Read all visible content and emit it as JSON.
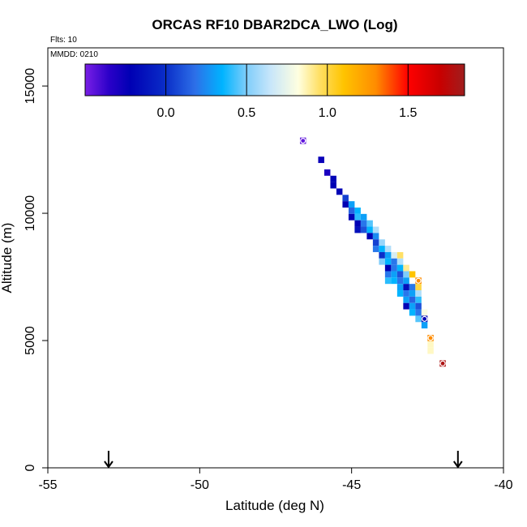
{
  "chart_data": {
    "type": "heatmap",
    "title": "ORCAS RF10 DBAR2DCA_LWO (Log)",
    "flights_label": "Flts: 10",
    "date_label": "MMDD: 0210",
    "xlabel": "Latitude (deg N)",
    "ylabel": "Altitude (m)",
    "xlim": [
      -55,
      -40
    ],
    "ylim": [
      0,
      16500
    ],
    "x_ticks": [
      -55,
      -50,
      -45,
      -40
    ],
    "x_tick_labels": [
      "-55",
      "-50",
      "-45",
      "-40"
    ],
    "y_ticks": [
      0,
      5000,
      10000,
      15000
    ],
    "y_tick_labels": [
      "0",
      "5000",
      "10000",
      "15000"
    ],
    "colorbar": {
      "range": [
        -0.5,
        1.85
      ],
      "ticks": [
        0.0,
        0.5,
        1.0,
        1.5
      ],
      "tick_labels": [
        "0.0",
        "0.5",
        "1.0",
        "1.5"
      ],
      "stops": [
        {
          "v": -0.5,
          "c": "#7a1fe6"
        },
        {
          "v": -0.35,
          "c": "#2a00c8"
        },
        {
          "v": -0.22,
          "c": "#0000b4"
        },
        {
          "v": 0.0,
          "c": "#0a2ec8"
        },
        {
          "v": 0.18,
          "c": "#2d6fe8"
        },
        {
          "v": 0.35,
          "c": "#00b4ff"
        },
        {
          "v": 0.5,
          "c": "#7fcdfa"
        },
        {
          "v": 0.65,
          "c": "#c8e6fa"
        },
        {
          "v": 0.82,
          "c": "#ffffe0"
        },
        {
          "v": 0.95,
          "c": "#ffe066"
        },
        {
          "v": 1.1,
          "c": "#ffc400"
        },
        {
          "v": 1.3,
          "c": "#ff8c00"
        },
        {
          "v": 1.5,
          "c": "#ff0000"
        },
        {
          "v": 1.7,
          "c": "#c80000"
        },
        {
          "v": 1.85,
          "c": "#a01e1e"
        }
      ]
    },
    "arrows_latitude": [
      -53,
      -41.5
    ],
    "cells": [
      {
        "lat": -46.6,
        "alt": 12850,
        "value": -0.45
      },
      {
        "lat": -46.0,
        "alt": 12100,
        "value": -0.25
      },
      {
        "lat": -45.8,
        "alt": 11600,
        "value": -0.3
      },
      {
        "lat": -45.6,
        "alt": 11350,
        "value": -0.2
      },
      {
        "lat": -45.6,
        "alt": 11100,
        "value": -0.22
      },
      {
        "lat": -45.4,
        "alt": 10850,
        "value": -0.2
      },
      {
        "lat": -45.2,
        "alt": 10600,
        "value": 0.05
      },
      {
        "lat": -45.2,
        "alt": 10350,
        "value": -0.22
      },
      {
        "lat": -45.0,
        "alt": 10350,
        "value": 0.3
      },
      {
        "lat": -45.0,
        "alt": 10100,
        "value": 0.15
      },
      {
        "lat": -44.8,
        "alt": 10100,
        "value": 0.35
      },
      {
        "lat": -45.0,
        "alt": 9850,
        "value": -0.2
      },
      {
        "lat": -44.8,
        "alt": 9850,
        "value": 0.4
      },
      {
        "lat": -44.6,
        "alt": 9850,
        "value": 0.3
      },
      {
        "lat": -44.8,
        "alt": 9600,
        "value": -0.22
      },
      {
        "lat": -44.6,
        "alt": 9600,
        "value": 0.2
      },
      {
        "lat": -44.4,
        "alt": 9600,
        "value": 0.45
      },
      {
        "lat": -44.8,
        "alt": 9350,
        "value": -0.15
      },
      {
        "lat": -44.6,
        "alt": 9350,
        "value": 0.1
      },
      {
        "lat": -44.4,
        "alt": 9350,
        "value": 0.35
      },
      {
        "lat": -44.2,
        "alt": 9350,
        "value": 0.6
      },
      {
        "lat": -44.4,
        "alt": 9100,
        "value": -0.22
      },
      {
        "lat": -44.2,
        "alt": 9100,
        "value": 0.25
      },
      {
        "lat": -44.2,
        "alt": 8850,
        "value": 0.05
      },
      {
        "lat": -44.0,
        "alt": 8850,
        "value": 0.55
      },
      {
        "lat": -44.2,
        "alt": 8600,
        "value": 0.2
      },
      {
        "lat": -44.0,
        "alt": 8600,
        "value": 0.35
      },
      {
        "lat": -43.8,
        "alt": 8600,
        "value": 0.6
      },
      {
        "lat": -43.6,
        "alt": 8350,
        "value": 0.7
      },
      {
        "lat": -43.4,
        "alt": 8350,
        "value": 0.95
      },
      {
        "lat": -44.0,
        "alt": 8350,
        "value": 0.0
      },
      {
        "lat": -43.8,
        "alt": 8350,
        "value": 0.3
      },
      {
        "lat": -44.0,
        "alt": 8100,
        "value": 0.5
      },
      {
        "lat": -43.8,
        "alt": 8100,
        "value": 0.35
      },
      {
        "lat": -43.6,
        "alt": 8100,
        "value": 0.2
      },
      {
        "lat": -43.4,
        "alt": 8100,
        "value": 0.6
      },
      {
        "lat": -43.8,
        "alt": 7850,
        "value": -0.22
      },
      {
        "lat": -43.6,
        "alt": 7850,
        "value": 0.2
      },
      {
        "lat": -43.4,
        "alt": 7850,
        "value": 0.35
      },
      {
        "lat": -43.2,
        "alt": 7850,
        "value": 0.9
      },
      {
        "lat": -43.8,
        "alt": 7600,
        "value": 0.2
      },
      {
        "lat": -43.6,
        "alt": 7600,
        "value": 0.3
      },
      {
        "lat": -43.4,
        "alt": 7600,
        "value": 0.1
      },
      {
        "lat": -43.2,
        "alt": 7600,
        "value": 0.5
      },
      {
        "lat": -43.0,
        "alt": 7600,
        "value": 1.1
      },
      {
        "lat": -43.8,
        "alt": 7350,
        "value": 0.4
      },
      {
        "lat": -43.6,
        "alt": 7350,
        "value": 0.35
      },
      {
        "lat": -43.4,
        "alt": 7350,
        "value": 0.2
      },
      {
        "lat": -43.2,
        "alt": 7350,
        "value": 0.3
      },
      {
        "lat": -42.8,
        "alt": 7350,
        "value": 1.3
      },
      {
        "lat": -43.4,
        "alt": 7100,
        "value": 0.3
      },
      {
        "lat": -43.2,
        "alt": 7100,
        "value": -0.15
      },
      {
        "lat": -43.0,
        "alt": 7100,
        "value": 0.2
      },
      {
        "lat": -42.8,
        "alt": 7100,
        "value": 1.0
      },
      {
        "lat": -43.4,
        "alt": 6850,
        "value": 0.35
      },
      {
        "lat": -43.2,
        "alt": 6850,
        "value": 0.2
      },
      {
        "lat": -43.0,
        "alt": 6850,
        "value": 0.3
      },
      {
        "lat": -42.8,
        "alt": 6850,
        "value": 0.6
      },
      {
        "lat": -43.2,
        "alt": 6600,
        "value": 0.3
      },
      {
        "lat": -43.0,
        "alt": 6600,
        "value": 0.15
      },
      {
        "lat": -42.8,
        "alt": 6600,
        "value": 0.4
      },
      {
        "lat": -43.2,
        "alt": 6350,
        "value": -0.2
      },
      {
        "lat": -43.0,
        "alt": 6350,
        "value": 0.3
      },
      {
        "lat": -42.8,
        "alt": 6350,
        "value": 0.1
      },
      {
        "lat": -43.0,
        "alt": 6100,
        "value": 0.35
      },
      {
        "lat": -42.8,
        "alt": 6100,
        "value": 0.2
      },
      {
        "lat": -42.6,
        "alt": 6100,
        "value": 0.8
      },
      {
        "lat": -42.8,
        "alt": 5850,
        "value": 0.45
      },
      {
        "lat": -42.6,
        "alt": 5850,
        "value": -0.22
      },
      {
        "lat": -42.6,
        "alt": 5600,
        "value": 0.3
      },
      {
        "lat": -42.4,
        "alt": 5100,
        "value": 1.3
      },
      {
        "lat": -42.4,
        "alt": 4850,
        "value": 0.85
      },
      {
        "lat": -42.4,
        "alt": 4600,
        "value": 0.85
      },
      {
        "lat": -42.0,
        "alt": 4100,
        "value": 1.8
      }
    ],
    "circle_markers": [
      {
        "lat": -46.6,
        "alt": 12850
      },
      {
        "lat": -42.8,
        "alt": 7350
      },
      {
        "lat": -42.6,
        "alt": 5850
      },
      {
        "lat": -42.4,
        "alt": 5100
      },
      {
        "lat": -42.0,
        "alt": 4100
      }
    ]
  }
}
